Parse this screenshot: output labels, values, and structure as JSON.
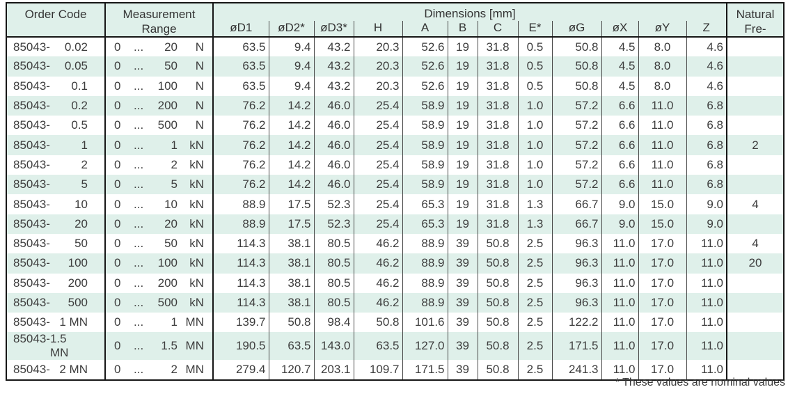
{
  "colors": {
    "band_mint": "#dff0ea",
    "border_dark": "#161616",
    "grid_thin": "#474747",
    "text": "#3d3d3d"
  },
  "page": {
    "footnote": "* These values are nominal values"
  },
  "table": {
    "headers": {
      "order_code": "Order Code",
      "measurement_range": "Measurement Range",
      "dimensions_group": "Dimensions [mm]",
      "natural_frequency": "Natural Fre-",
      "dim_columns": [
        "øD1",
        "øD2*",
        "øD3*",
        "H",
        "A",
        "B",
        "C",
        "E*",
        "øG",
        "øX",
        "øY",
        "Z"
      ]
    },
    "rows": [
      {
        "code_prefix": "85043-",
        "code_value": "0.02",
        "range_start": "0",
        "range_dots": "...",
        "range_end": "20",
        "range_unit": "N",
        "dims": [
          "63.5",
          "9.4",
          "43.2",
          "20.3",
          "52.6",
          "19",
          "31.8",
          "0.5",
          "50.8",
          "4.5",
          "8.0",
          "4.6"
        ],
        "natural_freq": ""
      },
      {
        "code_prefix": "85043-",
        "code_value": "0.05",
        "range_start": "0",
        "range_dots": "...",
        "range_end": "50",
        "range_unit": "N",
        "dims": [
          "63.5",
          "9.4",
          "43.2",
          "20.3",
          "52.6",
          "19",
          "31.8",
          "0.5",
          "50.8",
          "4.5",
          "8.0",
          "4.6"
        ],
        "natural_freq": ""
      },
      {
        "code_prefix": "85043-",
        "code_value": "0.1",
        "range_start": "0",
        "range_dots": "...",
        "range_end": "100",
        "range_unit": "N",
        "dims": [
          "63.5",
          "9.4",
          "43.2",
          "20.3",
          "52.6",
          "19",
          "31.8",
          "0.5",
          "50.8",
          "4.5",
          "8.0",
          "4.6"
        ],
        "natural_freq": ""
      },
      {
        "code_prefix": "85043-",
        "code_value": "0.2",
        "range_start": "0",
        "range_dots": "...",
        "range_end": "200",
        "range_unit": "N",
        "dims": [
          "76.2",
          "14.2",
          "46.0",
          "25.4",
          "58.9",
          "19",
          "31.8",
          "1.0",
          "57.2",
          "6.6",
          "11.0",
          "6.8"
        ],
        "natural_freq": ""
      },
      {
        "code_prefix": "85043-",
        "code_value": "0.5",
        "range_start": "0",
        "range_dots": "...",
        "range_end": "500",
        "range_unit": "N",
        "dims": [
          "76.2",
          "14.2",
          "46.0",
          "25.4",
          "58.9",
          "19",
          "31.8",
          "1.0",
          "57.2",
          "6.6",
          "11.0",
          "6.8"
        ],
        "natural_freq": ""
      },
      {
        "code_prefix": "85043-",
        "code_value": "1",
        "range_start": "0",
        "range_dots": "...",
        "range_end": "1",
        "range_unit": "kN",
        "dims": [
          "76.2",
          "14.2",
          "46.0",
          "25.4",
          "58.9",
          "19",
          "31.8",
          "1.0",
          "57.2",
          "6.6",
          "11.0",
          "6.8"
        ],
        "natural_freq": "2"
      },
      {
        "code_prefix": "85043-",
        "code_value": "2",
        "range_start": "0",
        "range_dots": "...",
        "range_end": "2",
        "range_unit": "kN",
        "dims": [
          "76.2",
          "14.2",
          "46.0",
          "25.4",
          "58.9",
          "19",
          "31.8",
          "1.0",
          "57.2",
          "6.6",
          "11.0",
          "6.8"
        ],
        "natural_freq": ""
      },
      {
        "code_prefix": "85043-",
        "code_value": "5",
        "range_start": "0",
        "range_dots": "...",
        "range_end": "5",
        "range_unit": "kN",
        "dims": [
          "76.2",
          "14.2",
          "46.0",
          "25.4",
          "58.9",
          "19",
          "31.8",
          "1.0",
          "57.2",
          "6.6",
          "11.0",
          "6.8"
        ],
        "natural_freq": ""
      },
      {
        "code_prefix": "85043-",
        "code_value": "10",
        "range_start": "0",
        "range_dots": "...",
        "range_end": "10",
        "range_unit": "kN",
        "dims": [
          "88.9",
          "17.5",
          "52.3",
          "25.4",
          "65.3",
          "19",
          "31.8",
          "1.3",
          "66.7",
          "9.0",
          "15.0",
          "9.0"
        ],
        "natural_freq": "4"
      },
      {
        "code_prefix": "85043-",
        "code_value": "20",
        "range_start": "0",
        "range_dots": "...",
        "range_end": "20",
        "range_unit": "kN",
        "dims": [
          "88.9",
          "17.5",
          "52.3",
          "25.4",
          "65.3",
          "19",
          "31.8",
          "1.3",
          "66.7",
          "9.0",
          "15.0",
          "9.0"
        ],
        "natural_freq": ""
      },
      {
        "code_prefix": "85043-",
        "code_value": "50",
        "range_start": "0",
        "range_dots": "...",
        "range_end": "50",
        "range_unit": "kN",
        "dims": [
          "114.3",
          "38.1",
          "80.5",
          "46.2",
          "88.9",
          "39",
          "50.8",
          "2.5",
          "96.3",
          "11.0",
          "17.0",
          "11.0"
        ],
        "natural_freq": "4"
      },
      {
        "code_prefix": "85043-",
        "code_value": "100",
        "range_start": "0",
        "range_dots": "...",
        "range_end": "100",
        "range_unit": "kN",
        "dims": [
          "114.3",
          "38.1",
          "80.5",
          "46.2",
          "88.9",
          "39",
          "50.8",
          "2.5",
          "96.3",
          "11.0",
          "17.0",
          "11.0"
        ],
        "natural_freq": "20"
      },
      {
        "code_prefix": "85043-",
        "code_value": "200",
        "range_start": "0",
        "range_dots": "...",
        "range_end": "200",
        "range_unit": "kN",
        "dims": [
          "114.3",
          "38.1",
          "80.5",
          "46.2",
          "88.9",
          "39",
          "50.8",
          "2.5",
          "96.3",
          "11.0",
          "17.0",
          "11.0"
        ],
        "natural_freq": ""
      },
      {
        "code_prefix": "85043-",
        "code_value": "500",
        "range_start": "0",
        "range_dots": "...",
        "range_end": "500",
        "range_unit": "kN",
        "dims": [
          "114.3",
          "38.1",
          "80.5",
          "46.2",
          "88.9",
          "39",
          "50.8",
          "2.5",
          "96.3",
          "11.0",
          "17.0",
          "11.0"
        ],
        "natural_freq": ""
      },
      {
        "code_prefix": "85043-",
        "code_value": "1 MN",
        "range_start": "0",
        "range_dots": "...",
        "range_end": "1",
        "range_unit": "MN",
        "dims": [
          "139.7",
          "50.8",
          "98.4",
          "50.8",
          "101.6",
          "39",
          "50.8",
          "2.5",
          "122.2",
          "11.0",
          "17.0",
          "11.0"
        ],
        "natural_freq": ""
      },
      {
        "code_prefix": "85043-",
        "code_value": "1.5 MN",
        "range_start": "0",
        "range_dots": "...",
        "range_end": "1.5",
        "range_unit": "MN",
        "dims": [
          "190.5",
          "63.5",
          "143.0",
          "63.5",
          "127.0",
          "39",
          "50.8",
          "2.5",
          "171.5",
          "11.0",
          "17.0",
          "11.0"
        ],
        "natural_freq": ""
      },
      {
        "code_prefix": "85043-",
        "code_value": "2 MN",
        "range_start": "0",
        "range_dots": "...",
        "range_end": "2",
        "range_unit": "MN",
        "dims": [
          "279.4",
          "120.7",
          "203.1",
          "109.7",
          "171.5",
          "39",
          "50.8",
          "2.5",
          "241.3",
          "11.0",
          "17.0",
          "11.0"
        ],
        "natural_freq": ""
      }
    ]
  }
}
